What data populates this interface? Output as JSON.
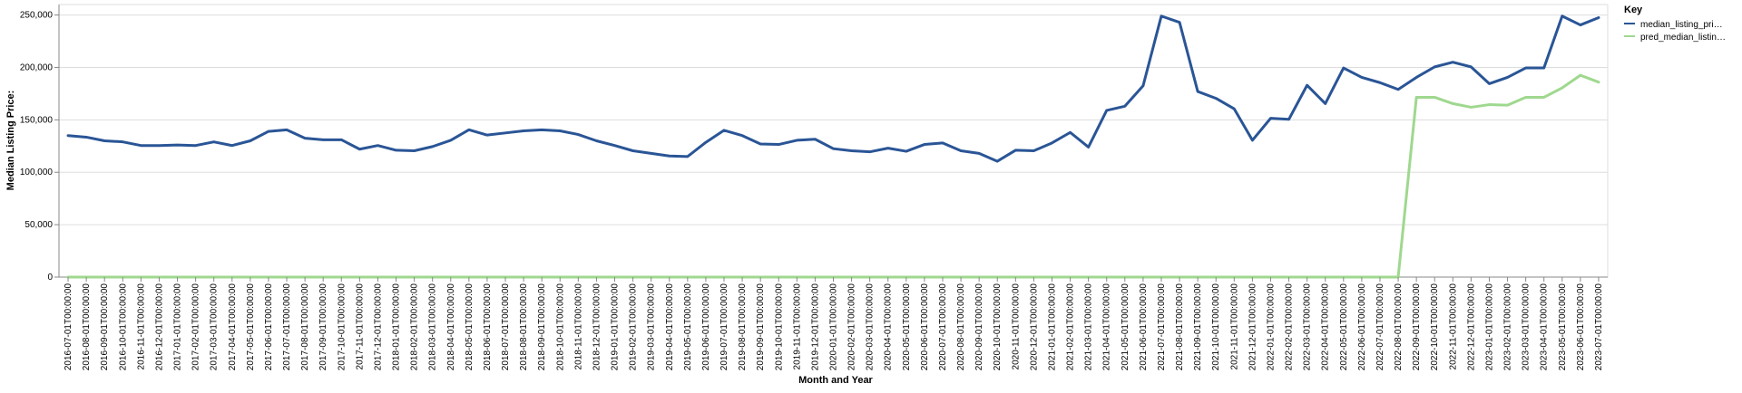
{
  "chart_data": {
    "type": "line",
    "xlabel": "Month and Year",
    "ylabel": "Median Listing Price:",
    "ylim": [
      0,
      260000
    ],
    "yticks": [
      0,
      50000,
      100000,
      150000,
      200000,
      250000
    ],
    "ytick_labels": [
      "0",
      "50,000",
      "100,000",
      "150,000",
      "200,000",
      "250,000"
    ],
    "grid": true,
    "legend": {
      "title": "Key",
      "position": "top-right",
      "entries": [
        "median_listing_pri…",
        "pred_median_listin…"
      ]
    },
    "x": [
      "2016-07-01T00:00:00",
      "2016-08-01T00:00:00",
      "2016-09-01T00:00:00",
      "2016-10-01T00:00:00",
      "2016-11-01T00:00:00",
      "2016-12-01T00:00:00",
      "2017-01-01T00:00:00",
      "2017-02-01T00:00:00",
      "2017-03-01T00:00:00",
      "2017-04-01T00:00:00",
      "2017-05-01T00:00:00",
      "2017-06-01T00:00:00",
      "2017-07-01T00:00:00",
      "2017-08-01T00:00:00",
      "2017-09-01T00:00:00",
      "2017-10-01T00:00:00",
      "2017-11-01T00:00:00",
      "2017-12-01T00:00:00",
      "2018-01-01T00:00:00",
      "2018-02-01T00:00:00",
      "2018-03-01T00:00:00",
      "2018-04-01T00:00:00",
      "2018-05-01T00:00:00",
      "2018-06-01T00:00:00",
      "2018-07-01T00:00:00",
      "2018-08-01T00:00:00",
      "2018-09-01T00:00:00",
      "2018-10-01T00:00:00",
      "2018-11-01T00:00:00",
      "2018-12-01T00:00:00",
      "2019-01-01T00:00:00",
      "2019-02-01T00:00:00",
      "2019-03-01T00:00:00",
      "2019-04-01T00:00:00",
      "2019-05-01T00:00:00",
      "2019-06-01T00:00:00",
      "2019-07-01T00:00:00",
      "2019-08-01T00:00:00",
      "2019-09-01T00:00:00",
      "2019-10-01T00:00:00",
      "2019-11-01T00:00:00",
      "2019-12-01T00:00:00",
      "2020-01-01T00:00:00",
      "2020-02-01T00:00:00",
      "2020-03-01T00:00:00",
      "2020-04-01T00:00:00",
      "2020-05-01T00:00:00",
      "2020-06-01T00:00:00",
      "2020-07-01T00:00:00",
      "2020-08-01T00:00:00",
      "2020-09-01T00:00:00",
      "2020-10-01T00:00:00",
      "2020-11-01T00:00:00",
      "2020-12-01T00:00:00",
      "2021-01-01T00:00:00",
      "2021-02-01T00:00:00",
      "2021-03-01T00:00:00",
      "2021-04-01T00:00:00",
      "2021-05-01T00:00:00",
      "2021-06-01T00:00:00",
      "2021-07-01T00:00:00",
      "2021-08-01T00:00:00",
      "2021-09-01T00:00:00",
      "2021-10-01T00:00:00",
      "2021-11-01T00:00:00",
      "2021-12-01T00:00:00",
      "2022-01-01T00:00:00",
      "2022-02-01T00:00:00",
      "2022-03-01T00:00:00",
      "2022-04-01T00:00:00",
      "2022-05-01T00:00:00",
      "2022-06-01T00:00:00",
      "2022-07-01T00:00:00",
      "2022-08-01T00:00:00",
      "2022-09-01T00:00:00",
      "2022-10-01T00:00:00",
      "2022-11-01T00:00:00",
      "2022-12-01T00:00:00",
      "2023-01-01T00:00:00",
      "2023-02-01T00:00:00",
      "2023-03-01T00:00:00",
      "2023-04-01T00:00:00",
      "2023-05-01T00:00:00",
      "2023-06-01T00:00:00",
      "2023-07-01T00:00:00"
    ],
    "series": [
      {
        "name": "median_listing_pri…",
        "color": "#2a5596",
        "values": [
          135000,
          133500,
          130000,
          129000,
          125500,
          125500,
          126000,
          125500,
          129000,
          125500,
          130000,
          139000,
          140500,
          132500,
          131000,
          131000,
          122000,
          125500,
          121000,
          120500,
          124500,
          130500,
          140500,
          135500,
          137500,
          139500,
          140500,
          139500,
          136000,
          130000,
          125500,
          120500,
          118000,
          115500,
          115000,
          128500,
          140000,
          135000,
          127000,
          126500,
          130500,
          131500,
          122500,
          120500,
          119500,
          123000,
          120000,
          126500,
          128000,
          120500,
          118000,
          110500,
          121000,
          120500,
          128000,
          138000,
          124000,
          159000,
          163000,
          182500,
          249000,
          243000,
          177000,
          170500,
          160500,
          130500,
          151500,
          150500,
          183000,
          165500,
          199500,
          190500,
          185500,
          179000,
          190500,
          200500,
          205000,
          200500,
          184500,
          190500,
          199500,
          199500,
          249000,
          240500,
          247500
        ]
      },
      {
        "name": "pred_median_listin…",
        "color": "#9fd88f",
        "values": [
          0,
          0,
          0,
          0,
          0,
          0,
          0,
          0,
          0,
          0,
          0,
          0,
          0,
          0,
          0,
          0,
          0,
          0,
          0,
          0,
          0,
          0,
          0,
          0,
          0,
          0,
          0,
          0,
          0,
          0,
          0,
          0,
          0,
          0,
          0,
          0,
          0,
          0,
          0,
          0,
          0,
          0,
          0,
          0,
          0,
          0,
          0,
          0,
          0,
          0,
          0,
          0,
          0,
          0,
          0,
          0,
          0,
          0,
          0,
          0,
          0,
          0,
          0,
          0,
          0,
          0,
          0,
          0,
          0,
          0,
          0,
          0,
          0,
          0,
          171500,
          171500,
          165500,
          162000,
          164500,
          164000,
          171500,
          171500,
          180500,
          192500,
          186000
        ]
      }
    ]
  }
}
